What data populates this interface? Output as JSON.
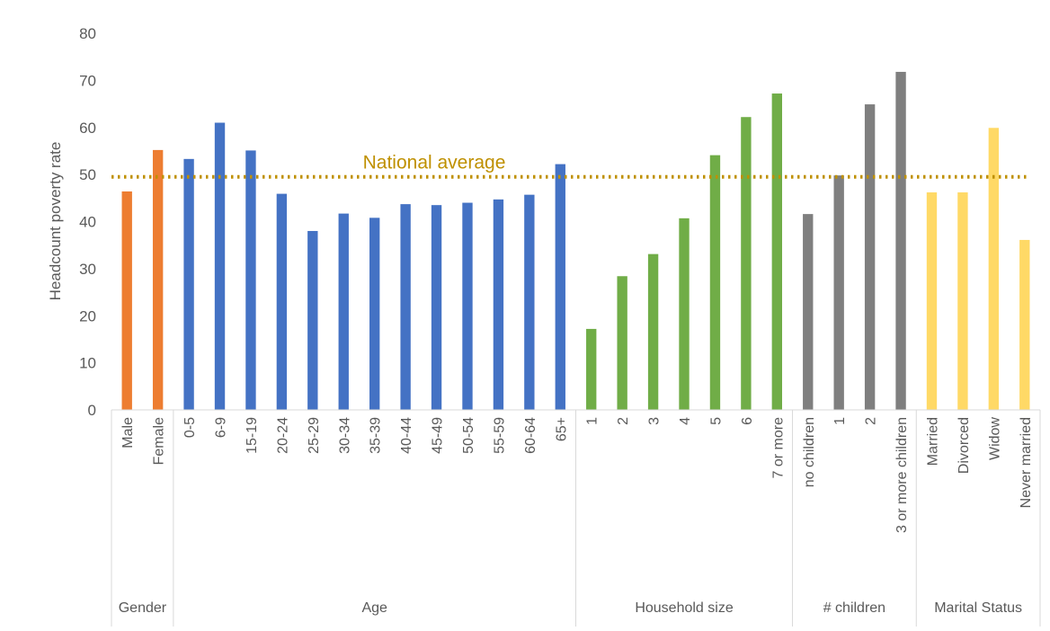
{
  "chart_data": {
    "type": "bar",
    "ylabel": "Headcount poverty rate",
    "xlabel": "",
    "ylim": [
      0,
      80
    ],
    "yticks": [
      0,
      10,
      20,
      30,
      40,
      50,
      60,
      70,
      80
    ],
    "grid": false,
    "reference_line": {
      "label": "National average",
      "value": 49.5,
      "color": "#BF9000",
      "style": "dotted"
    },
    "groups": [
      {
        "name": "Gender",
        "color": "#ED7D31",
        "categories": [
          "Male",
          "Female"
        ],
        "values": [
          46.4,
          55.2
        ]
      },
      {
        "name": "Age",
        "color": "#4472C4",
        "categories": [
          "0-5",
          "6-9",
          "15-19",
          "20-24",
          "25-29",
          "30-34",
          "35-39",
          "40-44",
          "45-49",
          "50-54",
          "55-59",
          "60-64",
          "65+"
        ],
        "values": [
          53.3,
          61.0,
          55.1,
          45.9,
          38.0,
          41.7,
          40.8,
          43.7,
          43.5,
          44.0,
          44.7,
          45.7,
          52.2
        ]
      },
      {
        "name": "Household size",
        "color": "#70AD47",
        "categories": [
          "1",
          "2",
          "3",
          "4",
          "5",
          "6",
          "7 or more"
        ],
        "values": [
          17.2,
          28.4,
          33.1,
          40.7,
          54.1,
          62.2,
          67.2
        ]
      },
      {
        "name": "# children",
        "color": "#7F7F7F",
        "categories": [
          "no children",
          "1",
          "2",
          "3 or more children"
        ],
        "values": [
          41.6,
          49.8,
          64.9,
          71.8
        ]
      },
      {
        "name": "Marital Status",
        "color": "#FFD966",
        "categories": [
          "Married",
          "Divorced",
          "Widow",
          "Never married"
        ],
        "values": [
          46.2,
          46.2,
          59.9,
          36.1
        ]
      }
    ]
  }
}
